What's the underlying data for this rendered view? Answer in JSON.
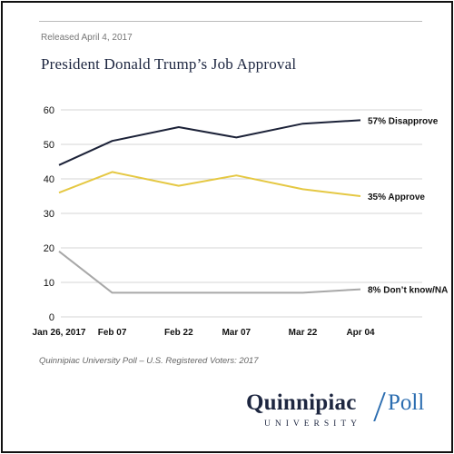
{
  "header": {
    "released": "Released April 4, 2017",
    "title": "President Donald Trump’s Job Approval"
  },
  "chart_data": {
    "type": "line",
    "title": "President Donald Trump’s Job Approval",
    "x": [
      "Jan 26, 2017",
      "Feb 07",
      "Feb 22",
      "Mar 07",
      "Mar 22",
      "Apr 04"
    ],
    "x_dates": [
      "2017-01-26",
      "2017-02-07",
      "2017-02-22",
      "2017-03-07",
      "2017-03-22",
      "2017-04-04"
    ],
    "ylim": [
      0,
      60
    ],
    "yticks": [
      0,
      10,
      20,
      30,
      40,
      50,
      60
    ],
    "grid": "horizontal",
    "series": [
      {
        "name": "Disapprove",
        "label": "57% Disapprove",
        "color": "#1c2238",
        "values": [
          44,
          51,
          55,
          52,
          56,
          57
        ]
      },
      {
        "name": "Approve",
        "label": "35% Approve",
        "color": "#e5c843",
        "values": [
          36,
          42,
          38,
          41,
          37,
          35
        ]
      },
      {
        "name": "Don’t know/NA",
        "label": "8% Don’t know/NA",
        "color": "#a8a8a8",
        "values": [
          19,
          7,
          7,
          7,
          7,
          8
        ]
      }
    ]
  },
  "footer": {
    "source": "Quinnipiac University Poll – U.S. Registered Voters: 2017",
    "logo_main": "Quinnipiac",
    "logo_poll": "Poll",
    "logo_sub": "UNIVERSITY"
  }
}
